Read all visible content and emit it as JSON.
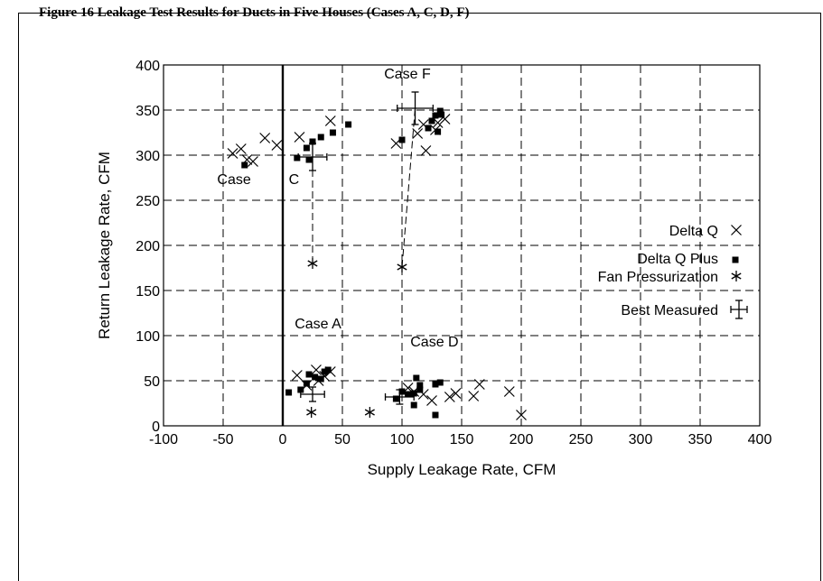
{
  "caption_partial": "Figure 16 Leakage Test Results for Ducts in Five Houses (Cases A, C, D, F)",
  "chart_data": {
    "type": "scatter",
    "xlabel": "Supply Leakage Rate, CFM",
    "ylabel": "Return Leakage Rate, CFM",
    "xlim": [
      -100,
      400
    ],
    "ylim": [
      0,
      400
    ],
    "xticks": [
      -100,
      -50,
      0,
      50,
      100,
      150,
      200,
      250,
      300,
      350,
      400
    ],
    "yticks": [
      0,
      50,
      100,
      150,
      200,
      250,
      300,
      350,
      400
    ],
    "grid": true,
    "legend_position": "right",
    "series": [
      {
        "name": "Delta Q",
        "marker": "x",
        "points": [
          [
            -42,
            302
          ],
          [
            -35,
            307
          ],
          [
            -30,
            295
          ],
          [
            -25,
            293
          ],
          [
            -15,
            319
          ],
          [
            -5,
            311
          ],
          [
            14,
            320
          ],
          [
            40,
            338
          ],
          [
            95,
            313
          ],
          [
            113,
            324
          ],
          [
            120,
            305
          ],
          [
            118,
            334
          ],
          [
            128,
            328
          ],
          [
            130,
            336
          ],
          [
            136,
            340
          ],
          [
            12,
            56
          ],
          [
            20,
            45
          ],
          [
            30,
            50
          ],
          [
            35,
            55
          ],
          [
            40,
            60
          ],
          [
            28,
            62
          ],
          [
            105,
            42
          ],
          [
            110,
            38
          ],
          [
            118,
            35
          ],
          [
            125,
            28
          ],
          [
            140,
            32
          ],
          [
            145,
            36
          ],
          [
            160,
            33
          ],
          [
            165,
            46
          ],
          [
            190,
            38
          ],
          [
            200,
            12
          ]
        ]
      },
      {
        "name": "Delta Q Plus",
        "marker": "square",
        "points": [
          [
            -32,
            289
          ],
          [
            12,
            297
          ],
          [
            20,
            308
          ],
          [
            25,
            315
          ],
          [
            22,
            295
          ],
          [
            32,
            320
          ],
          [
            42,
            325
          ],
          [
            55,
            334
          ],
          [
            100,
            317
          ],
          [
            122,
            330
          ],
          [
            125,
            338
          ],
          [
            128,
            344
          ],
          [
            132,
            349
          ],
          [
            133,
            345
          ],
          [
            130,
            326
          ],
          [
            5,
            37
          ],
          [
            15,
            40
          ],
          [
            20,
            47
          ],
          [
            22,
            57
          ],
          [
            27,
            54
          ],
          [
            32,
            52
          ],
          [
            35,
            60
          ],
          [
            38,
            62
          ],
          [
            95,
            30
          ],
          [
            100,
            38
          ],
          [
            110,
            23
          ],
          [
            105,
            35
          ],
          [
            115,
            40
          ],
          [
            110,
            36
          ],
          [
            112,
            53
          ],
          [
            115,
            45
          ],
          [
            128,
            12
          ],
          [
            128,
            46
          ],
          [
            132,
            48
          ]
        ]
      },
      {
        "name": "Fan Pressurization",
        "marker": "asterisk",
        "points": [
          [
            25,
            180
          ],
          [
            100,
            176
          ],
          [
            24,
            15
          ],
          [
            73,
            15
          ]
        ]
      },
      {
        "name": "Best Measured",
        "marker": "errorbar",
        "points": [
          {
            "x": 25,
            "y": 298,
            "xerr": 12,
            "yerr": 15
          },
          {
            "x": 111,
            "y": 352,
            "xerr": 15,
            "yerr": 18
          },
          {
            "x": 25,
            "y": 35,
            "xerr": 10,
            "yerr": 8
          },
          {
            "x": 98,
            "y": 32,
            "xerr": 12,
            "yerr": 8
          }
        ]
      }
    ],
    "annotations": [
      {
        "text": "Case F",
        "x": 85,
        "y": 385
      },
      {
        "text": "Case",
        "x": -55,
        "y": 268
      },
      {
        "text": "C",
        "x": 5,
        "y": 268
      },
      {
        "text": "Case A",
        "x": 10,
        "y": 108
      },
      {
        "text": "Case D",
        "x": 107,
        "y": 88
      }
    ],
    "connectors": [
      {
        "from": [
          25,
          180
        ],
        "to": [
          25,
          298
        ]
      },
      {
        "from": [
          100,
          176
        ],
        "to": [
          111,
          352
        ]
      }
    ]
  }
}
